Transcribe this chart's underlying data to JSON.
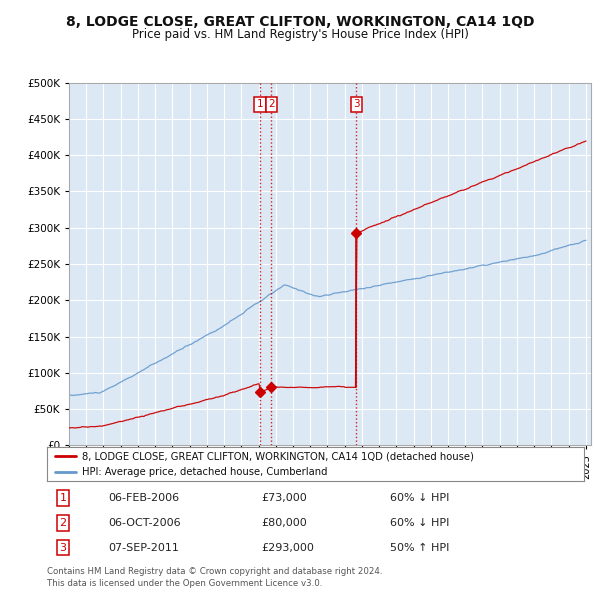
{
  "title_line1": "8, LODGE CLOSE, GREAT CLIFTON, WORKINGTON, CA14 1QD",
  "title_line2": "Price paid vs. HM Land Registry's House Price Index (HPI)",
  "legend_label_red": "8, LODGE CLOSE, GREAT CLIFTON, WORKINGTON, CA14 1QD (detached house)",
  "legend_label_blue": "HPI: Average price, detached house, Cumberland",
  "transactions": [
    {
      "num": 1,
      "date": "06-FEB-2006",
      "price": 73000,
      "pct": "60%",
      "dir": "↓",
      "rel": "HPI",
      "x": 2006.09
    },
    {
      "num": 2,
      "date": "06-OCT-2006",
      "price": 80000,
      "pct": "60%",
      "dir": "↓",
      "rel": "HPI",
      "x": 2006.75
    },
    {
      "num": 3,
      "date": "07-SEP-2011",
      "price": 293000,
      "pct": "50%",
      "dir": "↑",
      "rel": "HPI",
      "x": 2011.67
    }
  ],
  "vline_color": "#cc0000",
  "red_color": "#cc0000",
  "blue_color": "#6699cc",
  "plot_bg_color": "#dce9f5",
  "background_color": "#ffffff",
  "grid_color": "#ffffff",
  "ylim_min": 0,
  "ylim_max": 500000,
  "footer_line1": "Contains HM Land Registry data © Crown copyright and database right 2024.",
  "footer_line2": "This data is licensed under the Open Government Licence v3.0."
}
